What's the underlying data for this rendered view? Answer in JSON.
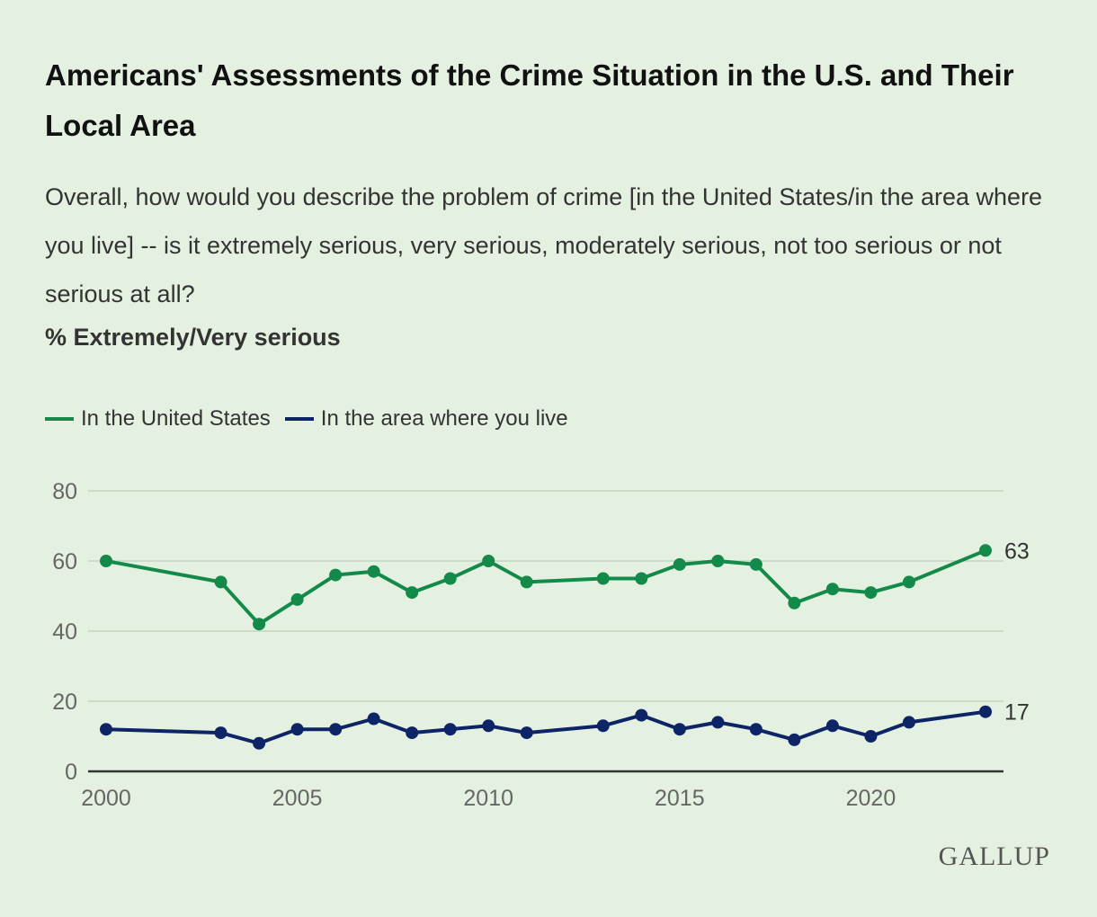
{
  "chart_data": {
    "type": "line",
    "title": "Americans' Assessments of the Crime Situation in the U.S. and Their Local Area",
    "subtitle": "Overall, how would you describe the problem of crime [in the United States/in the area where you live] -- is it extremely serious, very serious, moderately serious, not too serious or not serious at all?",
    "ylabel": "% Extremely/Very serious",
    "xlabel": "",
    "x": [
      2000,
      2003,
      2004,
      2005,
      2006,
      2007,
      2008,
      2009,
      2010,
      2011,
      2013,
      2014,
      2015,
      2016,
      2017,
      2018,
      2019,
      2020,
      2021,
      2023
    ],
    "series": [
      {
        "name": "In the United States",
        "color": "#138a4a",
        "values": [
          60,
          54,
          42,
          49,
          56,
          57,
          51,
          55,
          60,
          54,
          55,
          55,
          59,
          60,
          59,
          48,
          52,
          51,
          54,
          63
        ],
        "end_label": "63"
      },
      {
        "name": "In the area where you live",
        "color": "#0d2466",
        "values": [
          12,
          11,
          8,
          12,
          12,
          15,
          11,
          12,
          13,
          11,
          13,
          16,
          12,
          14,
          12,
          9,
          13,
          10,
          14,
          17
        ],
        "end_label": "17"
      }
    ],
    "ylim": [
      0,
      80
    ],
    "xlim": [
      2000,
      2023
    ],
    "yticks": [
      "0",
      "20",
      "40",
      "60",
      "80"
    ],
    "xticks": [
      "2000",
      "2005",
      "2010",
      "2015",
      "2020"
    ],
    "grid": true,
    "legend_position": "top-left"
  },
  "source": "GALLUP"
}
